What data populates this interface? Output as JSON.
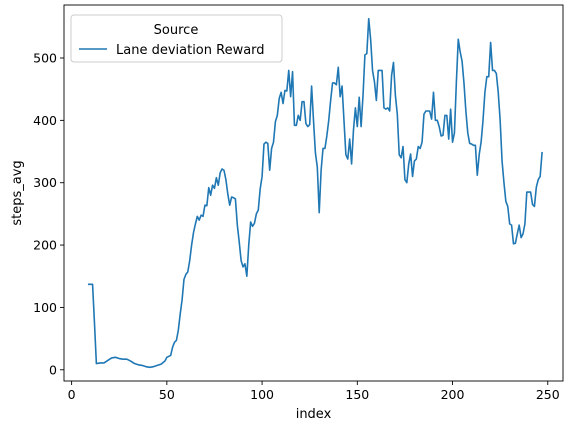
{
  "chart_data": {
    "type": "line",
    "xlabel": "index",
    "ylabel": "steps_avg",
    "xlim": [
      -4,
      258
    ],
    "ylim": [
      -18,
      585
    ],
    "xticks": [
      0,
      50,
      100,
      150,
      200,
      250
    ],
    "yticks": [
      0,
      100,
      200,
      300,
      400,
      500
    ],
    "grid": false,
    "legend": {
      "title": "Source",
      "placement": "top-left"
    },
    "series": [
      {
        "name": "Lane deviation Reward",
        "color": "#1f77b4",
        "points": [
          [
            9,
            137
          ],
          [
            11,
            137
          ],
          [
            12,
            75
          ],
          [
            13,
            10
          ],
          [
            15,
            11
          ],
          [
            17,
            11
          ],
          [
            19,
            15
          ],
          [
            21,
            19
          ],
          [
            23,
            20
          ],
          [
            25,
            18
          ],
          [
            27,
            17
          ],
          [
            29,
            17
          ],
          [
            31,
            14
          ],
          [
            33,
            10
          ],
          [
            35,
            8
          ],
          [
            37,
            7
          ],
          [
            39,
            5
          ],
          [
            41,
            4
          ],
          [
            43,
            5
          ],
          [
            45,
            7
          ],
          [
            47,
            9
          ],
          [
            49,
            14
          ],
          [
            50,
            20
          ],
          [
            52,
            23
          ],
          [
            53,
            36
          ],
          [
            54,
            44
          ],
          [
            55,
            47
          ],
          [
            56,
            63
          ],
          [
            57,
            89
          ],
          [
            58,
            112
          ],
          [
            59,
            145
          ],
          [
            60,
            153
          ],
          [
            61,
            157
          ],
          [
            62,
            175
          ],
          [
            63,
            200
          ],
          [
            64,
            220
          ],
          [
            65,
            234
          ],
          [
            66,
            246
          ],
          [
            67,
            240
          ],
          [
            68,
            248
          ],
          [
            69,
            246
          ],
          [
            70,
            264
          ],
          [
            71,
            263
          ],
          [
            72,
            292
          ],
          [
            73,
            280
          ],
          [
            74,
            296
          ],
          [
            75,
            291
          ],
          [
            76,
            308
          ],
          [
            77,
            296
          ],
          [
            78,
            316
          ],
          [
            79,
            322
          ],
          [
            80,
            320
          ],
          [
            81,
            305
          ],
          [
            82,
            282
          ],
          [
            83,
            264
          ],
          [
            84,
            277
          ],
          [
            85,
            276
          ],
          [
            86,
            274
          ],
          [
            87,
            232
          ],
          [
            88,
            205
          ],
          [
            89,
            175
          ],
          [
            90,
            165
          ],
          [
            91,
            170
          ],
          [
            92,
            150
          ],
          [
            93,
            200
          ],
          [
            94,
            237
          ],
          [
            95,
            230
          ],
          [
            96,
            235
          ],
          [
            97,
            250
          ],
          [
            98,
            256
          ],
          [
            99,
            290
          ],
          [
            100,
            310
          ],
          [
            101,
            362
          ],
          [
            102,
            365
          ],
          [
            103,
            363
          ],
          [
            104,
            320
          ],
          [
            105,
            355
          ],
          [
            106,
            365
          ],
          [
            107,
            398
          ],
          [
            108,
            408
          ],
          [
            109,
            435
          ],
          [
            110,
            445
          ],
          [
            111,
            427
          ],
          [
            112,
            448
          ],
          [
            113,
            447
          ],
          [
            114,
            480
          ],
          [
            115,
            438
          ],
          [
            116,
            478
          ],
          [
            117,
            392
          ],
          [
            118,
            392
          ],
          [
            119,
            408
          ],
          [
            120,
            400
          ],
          [
            121,
            430
          ],
          [
            122,
            430
          ],
          [
            123,
            395
          ],
          [
            124,
            390
          ],
          [
            125,
            393
          ],
          [
            126,
            455
          ],
          [
            127,
            400
          ],
          [
            128,
            348
          ],
          [
            129,
            325
          ],
          [
            130,
            252
          ],
          [
            131,
            320
          ],
          [
            132,
            355
          ],
          [
            133,
            355
          ],
          [
            134,
            375
          ],
          [
            135,
            400
          ],
          [
            136,
            432
          ],
          [
            137,
            460
          ],
          [
            138,
            460
          ],
          [
            139,
            457
          ],
          [
            140,
            485
          ],
          [
            141,
            438
          ],
          [
            142,
            455
          ],
          [
            143,
            400
          ],
          [
            144,
            345
          ],
          [
            145,
            338
          ],
          [
            146,
            370
          ],
          [
            147,
            330
          ],
          [
            148,
            385
          ],
          [
            149,
            420
          ],
          [
            150,
            390
          ],
          [
            151,
            437
          ],
          [
            152,
            390
          ],
          [
            153,
            440
          ],
          [
            154,
            505
          ],
          [
            155,
            507
          ],
          [
            156,
            563
          ],
          [
            157,
            530
          ],
          [
            158,
            480
          ],
          [
            159,
            462
          ],
          [
            160,
            432
          ],
          [
            161,
            480
          ],
          [
            162,
            480
          ],
          [
            163,
            480
          ],
          [
            164,
            420
          ],
          [
            165,
            418
          ],
          [
            166,
            420
          ],
          [
            167,
            415
          ],
          [
            168,
            472
          ],
          [
            169,
            493
          ],
          [
            170,
            440
          ],
          [
            171,
            410
          ],
          [
            172,
            345
          ],
          [
            173,
            340
          ],
          [
            174,
            358
          ],
          [
            175,
            305
          ],
          [
            176,
            300
          ],
          [
            177,
            330
          ],
          [
            178,
            346
          ],
          [
            179,
            310
          ],
          [
            180,
            335
          ],
          [
            181,
            338
          ],
          [
            182,
            358
          ],
          [
            183,
            355
          ],
          [
            184,
            365
          ],
          [
            185,
            410
          ],
          [
            186,
            415
          ],
          [
            187,
            415
          ],
          [
            188,
            415
          ],
          [
            189,
            402
          ],
          [
            190,
            445
          ],
          [
            191,
            400
          ],
          [
            192,
            400
          ],
          [
            193,
            390
          ],
          [
            194,
            375
          ],
          [
            195,
            376
          ],
          [
            196,
            408
          ],
          [
            197,
            408
          ],
          [
            198,
            370
          ],
          [
            199,
            418
          ],
          [
            200,
            365
          ],
          [
            201,
            380
          ],
          [
            202,
            460
          ],
          [
            203,
            530
          ],
          [
            204,
            510
          ],
          [
            205,
            495
          ],
          [
            206,
            460
          ],
          [
            207,
            415
          ],
          [
            208,
            380
          ],
          [
            209,
            363
          ],
          [
            210,
            362
          ],
          [
            211,
            360
          ],
          [
            212,
            360
          ],
          [
            213,
            312
          ],
          [
            214,
            345
          ],
          [
            215,
            365
          ],
          [
            216,
            400
          ],
          [
            217,
            445
          ],
          [
            218,
            470
          ],
          [
            219,
            470
          ],
          [
            220,
            525
          ],
          [
            221,
            480
          ],
          [
            222,
            480
          ],
          [
            223,
            475
          ],
          [
            224,
            445
          ],
          [
            225,
            400
          ],
          [
            226,
            335
          ],
          [
            227,
            300
          ],
          [
            228,
            270
          ],
          [
            229,
            262
          ],
          [
            230,
            234
          ],
          [
            231,
            232
          ],
          [
            232,
            202
          ],
          [
            233,
            203
          ],
          [
            234,
            218
          ],
          [
            235,
            232
          ],
          [
            236,
            212
          ],
          [
            237,
            218
          ],
          [
            238,
            234
          ],
          [
            239,
            285
          ],
          [
            240,
            285
          ],
          [
            241,
            285
          ],
          [
            242,
            265
          ],
          [
            243,
            262
          ],
          [
            244,
            293
          ],
          [
            245,
            305
          ],
          [
            246,
            310
          ],
          [
            247,
            348
          ]
        ]
      }
    ]
  }
}
